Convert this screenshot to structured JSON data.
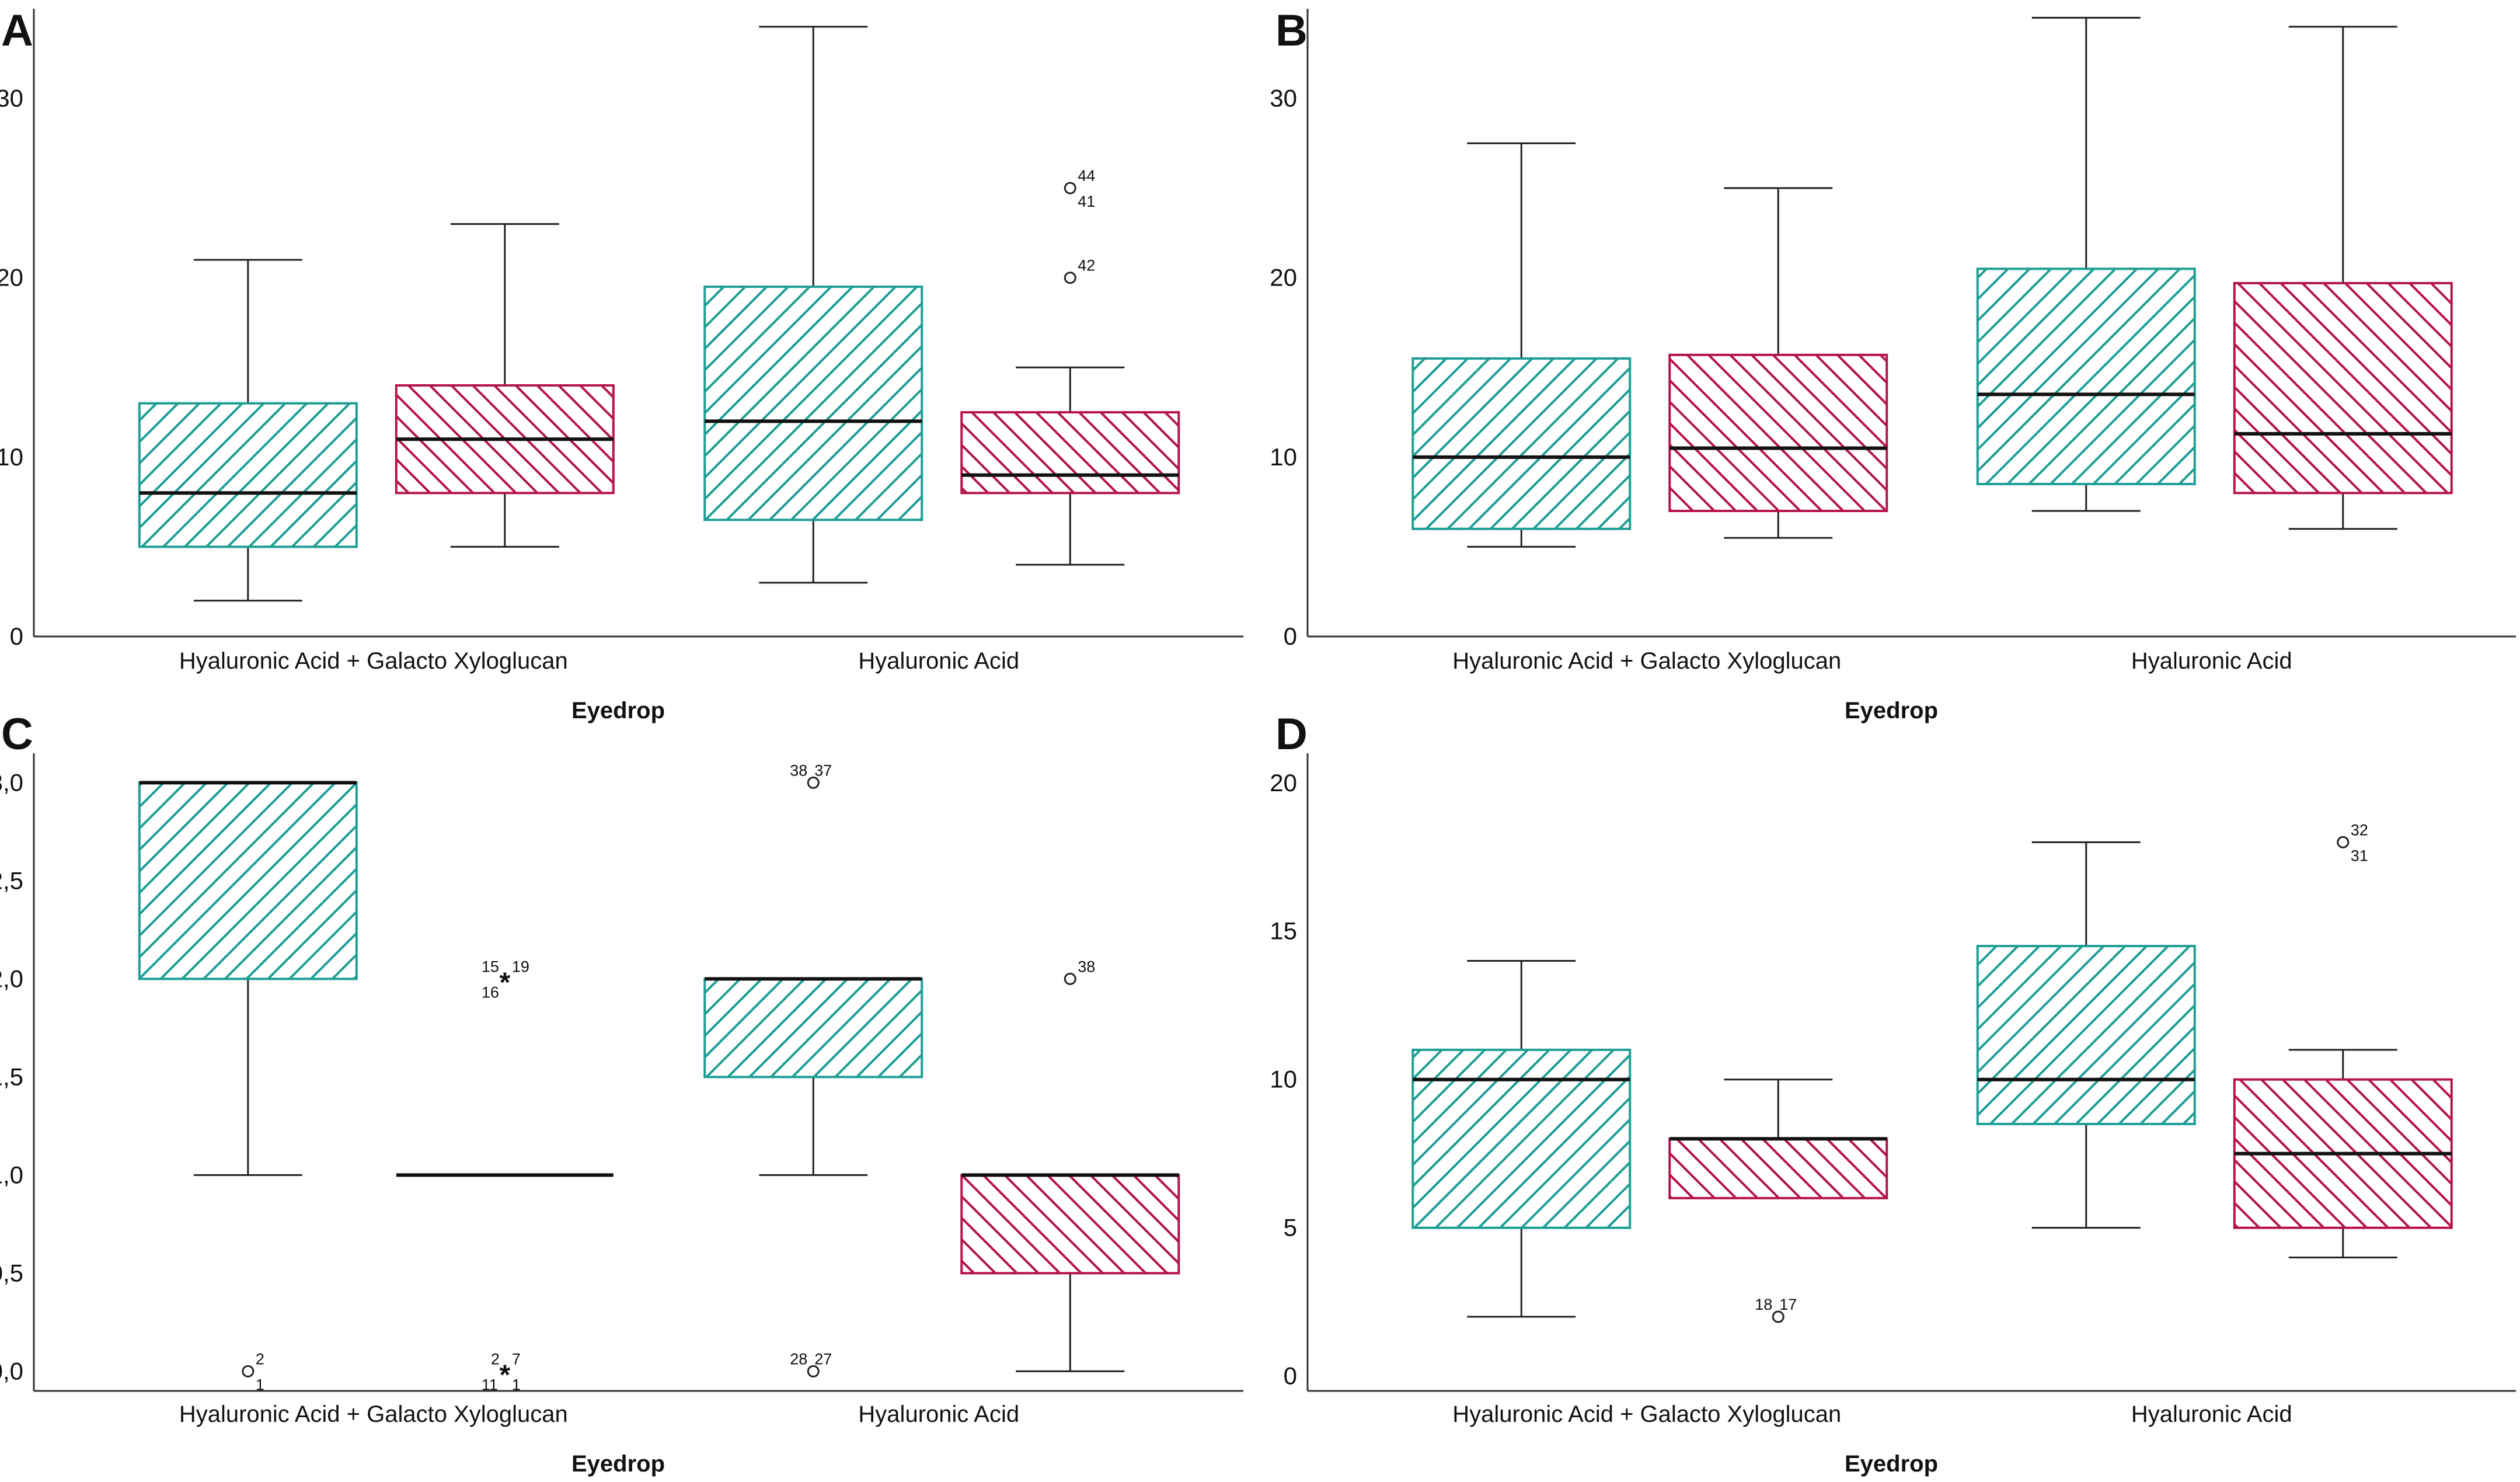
{
  "chart_data": [
    {
      "panel": "A",
      "type": "boxplot",
      "xlabel": "Eyedrop",
      "ylabel": "",
      "ylim": [
        0,
        35
      ],
      "yticks": [
        0,
        10,
        20,
        30
      ],
      "ytick_labels": [
        "0",
        "10",
        "20",
        "30"
      ],
      "categories": [
        "Hyaluronic Acid + Galacto Xyloglucan",
        "Hyaluronic Acid"
      ],
      "series": [
        {
          "name": "teal",
          "color": "#1e9e94",
          "hatch": "forward",
          "boxes": [
            {
              "whisker_low": 2,
              "q1": 5,
              "median": 8,
              "q3": 13,
              "whisker_high": 21,
              "outliers": []
            },
            {
              "whisker_low": 3,
              "q1": 6.5,
              "median": 12,
              "q3": 19.5,
              "whisker_high": 34,
              "outliers": []
            }
          ]
        },
        {
          "name": "crimson",
          "color": "#b5134b",
          "hatch": "back",
          "boxes": [
            {
              "whisker_low": 5,
              "q1": 8,
              "median": 11,
              "q3": 14,
              "whisker_high": 23,
              "outliers": []
            },
            {
              "whisker_low": 4,
              "q1": 8,
              "median": 9,
              "q3": 12.5,
              "whisker_high": 15,
              "outliers": [
                {
                  "value": 25,
                  "labels": [
                    "44",
                    "41"
                  ],
                  "marker": "circle"
                },
                {
                  "value": 20,
                  "labels": [
                    "42"
                  ],
                  "marker": "circle"
                }
              ]
            }
          ]
        }
      ]
    },
    {
      "panel": "B",
      "type": "boxplot",
      "xlabel": "Eyedrop",
      "ylabel": "",
      "ylim": [
        0,
        35
      ],
      "yticks": [
        0,
        10,
        20,
        30
      ],
      "ytick_labels": [
        "0",
        "10",
        "20",
        "30"
      ],
      "categories": [
        "Hyaluronic Acid + Galacto Xyloglucan",
        "Hyaluronic Acid"
      ],
      "series": [
        {
          "name": "teal",
          "color": "#1e9e94",
          "hatch": "forward",
          "boxes": [
            {
              "whisker_low": 5,
              "q1": 6,
              "median": 10,
              "q3": 15.5,
              "whisker_high": 27.5,
              "outliers": []
            },
            {
              "whisker_low": 7,
              "q1": 8.5,
              "median": 13.5,
              "q3": 20.5,
              "whisker_high": 34.5,
              "outliers": []
            }
          ]
        },
        {
          "name": "crimson",
          "color": "#b5134b",
          "hatch": "back",
          "boxes": [
            {
              "whisker_low": 5.5,
              "q1": 7,
              "median": 10.5,
              "q3": 15.7,
              "whisker_high": 25,
              "outliers": []
            },
            {
              "whisker_low": 6,
              "q1": 8,
              "median": 11.3,
              "q3": 19.7,
              "whisker_high": 34,
              "outliers": []
            }
          ]
        }
      ]
    },
    {
      "panel": "C",
      "type": "boxplot",
      "xlabel": "Eyedrop",
      "ylabel": "",
      "ylim": [
        -0.1,
        3.15
      ],
      "yticks": [
        0,
        0.5,
        1,
        1.5,
        2,
        2.5,
        3
      ],
      "ytick_labels": [
        "0,0",
        "0,5",
        "1,0",
        "1,5",
        "2,0",
        "2,5",
        "3,0"
      ],
      "categories": [
        "Hyaluronic Acid + Galacto Xyloglucan",
        "Hyaluronic Acid"
      ],
      "series": [
        {
          "name": "teal",
          "color": "#1e9e94",
          "hatch": "forward",
          "boxes": [
            {
              "whisker_low": 1,
              "q1": 2,
              "median": 3,
              "q3": 3,
              "whisker_high": 3,
              "outliers": [
                {
                  "value": 0,
                  "labels": [
                    "2",
                    "1"
                  ],
                  "marker": "circle"
                }
              ]
            },
            {
              "whisker_low": 1,
              "q1": 1.5,
              "median": 2,
              "q3": 2,
              "whisker_high": 2,
              "outliers": [
                {
                  "value": 3,
                  "labels": [
                    "38",
                    "37"
                  ],
                  "marker": "circle"
                },
                {
                  "value": 0,
                  "labels": [
                    "28",
                    "27"
                  ],
                  "marker": "circle"
                }
              ]
            }
          ]
        },
        {
          "name": "crimson",
          "color": "#b5134b",
          "hatch": "back",
          "boxes": [
            {
              "whisker_low": 1,
              "q1": 1,
              "median": 1,
              "q3": 1,
              "whisker_high": 1,
              "outliers": [
                {
                  "value": 2,
                  "labels": [
                    "15",
                    "19",
                    "16"
                  ],
                  "marker": "star"
                },
                {
                  "value": 0,
                  "labels": [
                    "2",
                    "7",
                    "11",
                    "1"
                  ],
                  "marker": "star"
                }
              ]
            },
            {
              "whisker_low": 0,
              "q1": 0.5,
              "median": 1,
              "q3": 1,
              "whisker_high": 1,
              "outliers": [
                {
                  "value": 2,
                  "labels": [
                    "38"
                  ],
                  "marker": "circle"
                }
              ]
            }
          ]
        }
      ]
    },
    {
      "panel": "D",
      "type": "boxplot",
      "xlabel": "Eyedrop",
      "ylabel": "",
      "ylim": [
        -0.5,
        21
      ],
      "yticks": [
        0,
        5,
        10,
        15,
        20
      ],
      "ytick_labels": [
        "0",
        "5",
        "10",
        "15",
        "20"
      ],
      "categories": [
        "Hyaluronic Acid + Galacto Xyloglucan",
        "Hyaluronic Acid"
      ],
      "series": [
        {
          "name": "teal",
          "color": "#1e9e94",
          "hatch": "forward",
          "boxes": [
            {
              "whisker_low": 2,
              "q1": 5,
              "median": 10,
              "q3": 11,
              "whisker_high": 14,
              "outliers": []
            },
            {
              "whisker_low": 5,
              "q1": 8.5,
              "median": 10,
              "q3": 14.5,
              "whisker_high": 18,
              "outliers": []
            }
          ]
        },
        {
          "name": "crimson",
          "color": "#b5134b",
          "hatch": "back",
          "boxes": [
            {
              "whisker_low": 6,
              "q1": 6,
              "median": 8,
              "q3": 8,
              "whisker_high": 10,
              "outliers": [
                {
                  "value": 2,
                  "labels": [
                    "18",
                    "17"
                  ],
                  "marker": "circle"
                }
              ]
            },
            {
              "whisker_low": 4,
              "q1": 5,
              "median": 7.5,
              "q3": 10,
              "whisker_high": 11,
              "outliers": [
                {
                  "value": 18,
                  "labels": [
                    "32",
                    "31"
                  ],
                  "marker": "circle"
                }
              ]
            }
          ]
        }
      ]
    }
  ]
}
